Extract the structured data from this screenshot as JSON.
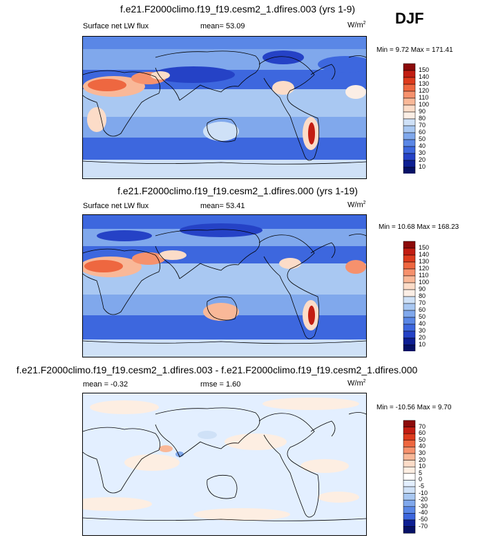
{
  "season_label": "DJF",
  "units": "W/m",
  "units_sup": "2",
  "chart_data": [
    {
      "type": "heatmap",
      "title": "f.e21.F2000climo.f19_f19.cesm2_1.dfires.003 (yrs 1-9)",
      "left_label": "Surface net LW flux",
      "center_label": "mean=  53.09",
      "min_max": "Min =   9.72 Max = 171.41",
      "min": 9.72,
      "max": 171.41,
      "mean": 53.09,
      "colorbar_levels": [
        "150",
        "140",
        "130",
        "120",
        "110",
        "100",
        "90",
        "80",
        "70",
        "60",
        "50",
        "40",
        "30",
        "20",
        "10"
      ],
      "colorbar_colors": [
        "#8c0a0a",
        "#c21d12",
        "#dd3b1d",
        "#ee6740",
        "#f6916d",
        "#f9b898",
        "#fcdcc8",
        "#fbeee5",
        "#cfe1f7",
        "#a9c8f2",
        "#80a8ec",
        "#5a87e6",
        "#3d67de",
        "#2542c6",
        "#0e1f93",
        "#061166"
      ]
    },
    {
      "type": "heatmap",
      "title": "f.e21.F2000climo.f19_f19.cesm2_1.dfires.000 (yrs 1-19)",
      "left_label": "Surface net LW flux",
      "center_label": "mean=  53.41",
      "min_max": "Min =  10.68 Max = 168.23",
      "min": 10.68,
      "max": 168.23,
      "mean": 53.41,
      "colorbar_levels": [
        "150",
        "140",
        "130",
        "120",
        "110",
        "100",
        "90",
        "80",
        "70",
        "60",
        "50",
        "40",
        "30",
        "20",
        "10"
      ],
      "colorbar_colors": [
        "#8c0a0a",
        "#c21d12",
        "#dd3b1d",
        "#ee6740",
        "#f6916d",
        "#f9b898",
        "#fcdcc8",
        "#fbeee5",
        "#cfe1f7",
        "#a9c8f2",
        "#80a8ec",
        "#5a87e6",
        "#3d67de",
        "#2542c6",
        "#0e1f93",
        "#061166"
      ]
    },
    {
      "type": "heatmap",
      "title": "f.e21.F2000climo.f19_f19.cesm2_1.dfires.003 - f.e21.F2000climo.f19_f19.cesm2_1.dfires.000",
      "left_label": "mean =  -0.32",
      "center_label": "rmse =   1.60",
      "min_max": "Min = -10.56 Max =   9.70",
      "min": -10.56,
      "max": 9.7,
      "mean": -0.32,
      "rmse": 1.6,
      "colorbar_levels": [
        "70",
        "60",
        "50",
        "40",
        "30",
        "20",
        "10",
        "5",
        "0",
        "-5",
        "-10",
        "-20",
        "-30",
        "-40",
        "-50",
        "-70"
      ],
      "colorbar_colors": [
        "#8c0a0a",
        "#c21d12",
        "#dd3b1d",
        "#ee6740",
        "#f6916d",
        "#f9b898",
        "#fcdcc8",
        "#fdeee2",
        "#ffffff",
        "#e3efff",
        "#cfe1f7",
        "#a9c8f2",
        "#80a8ec",
        "#5a87e6",
        "#3d67de",
        "#0e1f93",
        "#061166"
      ]
    }
  ]
}
